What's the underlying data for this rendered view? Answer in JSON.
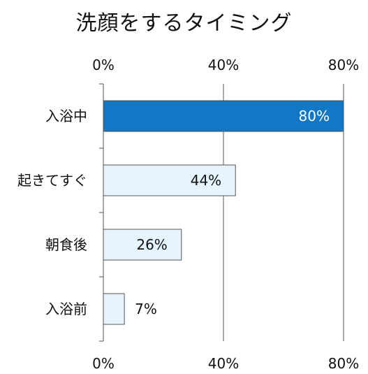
{
  "chart_data": {
    "type": "bar",
    "orientation": "horizontal",
    "title": "洗顔をするタイミング",
    "categories": [
      "入浴中",
      "起きてすぐ",
      "朝食後",
      "入浴前"
    ],
    "values": [
      80,
      44,
      26,
      7
    ],
    "value_labels": [
      "80%",
      "44%",
      "26%",
      "7%"
    ],
    "xlim": [
      0,
      80
    ],
    "ticks": [
      0,
      40,
      80
    ],
    "tick_labels": [
      "0%",
      "40%",
      "80%"
    ],
    "tick_labels_top": true,
    "tick_labels_bottom": true,
    "grid": true,
    "highlight_index": 0,
    "colors": {
      "highlight_fill": "#1277c4",
      "highlight_label": "#ffffff",
      "bar_fill": "#e6f5fd",
      "bar_stroke": "#555555",
      "label": "#111111",
      "grid": "#555555"
    }
  }
}
